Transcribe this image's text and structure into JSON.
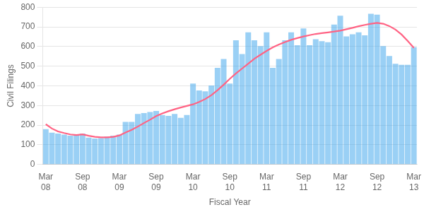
{
  "chart_data": {
    "type": "bar",
    "xlabel": "Fiscal Year",
    "ylabel": "Civil Filings",
    "categories": [
      "Mar\n08",
      null,
      null,
      null,
      null,
      null,
      "Sep\n08",
      null,
      null,
      null,
      null,
      null,
      "Mar\n09",
      null,
      null,
      null,
      null,
      null,
      "Sep\n09",
      null,
      null,
      null,
      null,
      null,
      "Mar\n10",
      null,
      null,
      null,
      null,
      null,
      "Sep\n10",
      null,
      null,
      null,
      null,
      null,
      "Mar\n11",
      null,
      null,
      null,
      null,
      null,
      "Sep\n11",
      null,
      null,
      null,
      null,
      null,
      "Mar\n12",
      null,
      null,
      null,
      null,
      null,
      "Sep\n12",
      null,
      null,
      null,
      null,
      null,
      "Mar\n13"
    ],
    "series": [
      {
        "type": "bar",
        "values": [
          180,
          162,
          157,
          152,
          147,
          150,
          157,
          137,
          132,
          134,
          142,
          147,
          152,
          217,
          217,
          257,
          262,
          267,
          272,
          252,
          247,
          257,
          237,
          252,
          412,
          377,
          372,
          402,
          492,
          537,
          412,
          632,
          562,
          672,
          632,
          602,
          672,
          492,
          537,
          632,
          672,
          607,
          692,
          607,
          637,
          627,
          622,
          712,
          757,
          652,
          662,
          672,
          657,
          767,
          762,
          602,
          552,
          512,
          507,
          507,
          597
        ]
      },
      {
        "type": "line",
        "values": [
          205,
          183,
          168,
          160,
          153,
          150,
          153,
          146,
          141,
          138,
          138,
          141,
          148,
          163,
          176,
          193,
          211,
          228,
          246,
          260,
          271,
          281,
          290,
          298,
          306,
          318,
          333,
          353,
          378,
          406,
          436,
          463,
          488,
          513,
          538,
          558,
          578,
          596,
          610,
          623,
          634,
          643,
          651,
          658,
          664,
          668,
          672,
          676,
          681,
          688,
          695,
          703,
          710,
          716,
          720,
          716,
          704,
          686,
          661,
          628,
          593
        ]
      }
    ],
    "ylim": [
      0,
      800
    ],
    "yticks": [
      0,
      100,
      200,
      300,
      400,
      500,
      600,
      700,
      800
    ],
    "grid": "y"
  }
}
